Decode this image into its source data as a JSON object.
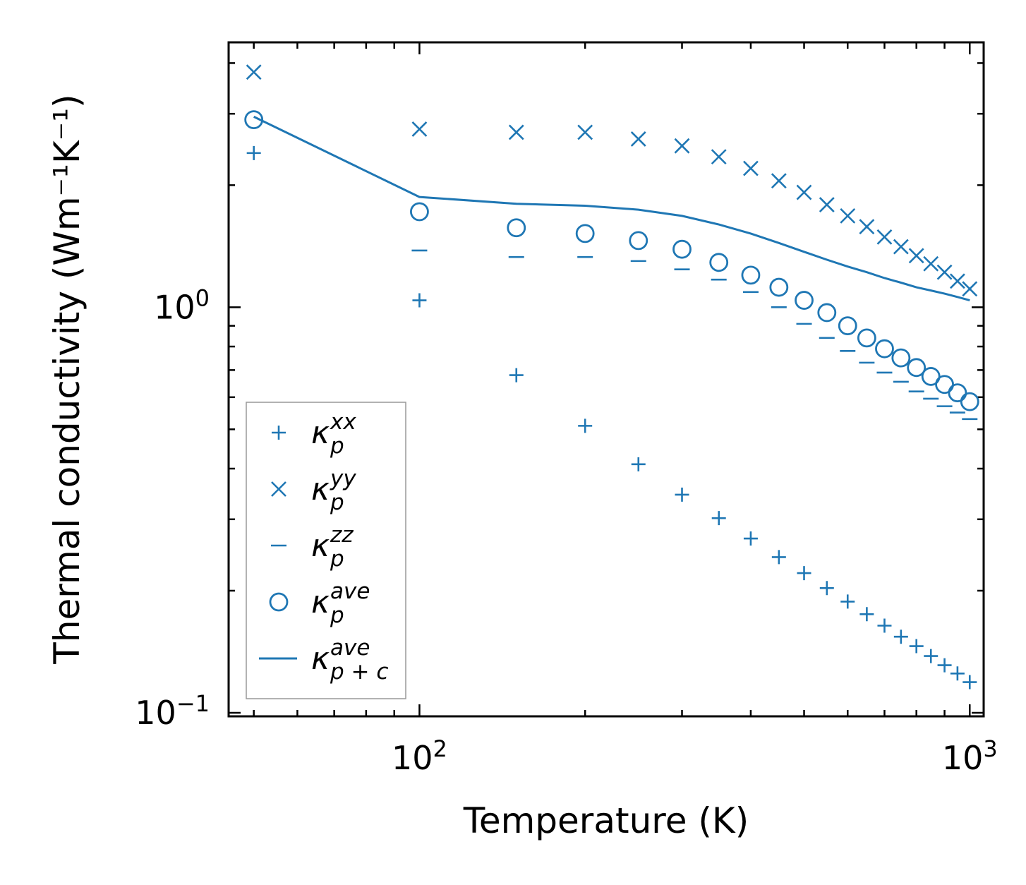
{
  "chart_data": {
    "type": "scatter",
    "xscale": "log",
    "yscale": "log",
    "xlabel": "Temperature (K)",
    "ylabel": "Thermal conductivity (Wm⁻¹K⁻¹)",
    "xlim": [
      45,
      1060
    ],
    "ylim": [
      0.098,
      4.5
    ],
    "xticks": [
      {
        "value": 100,
        "base": "10",
        "exp": "2"
      },
      {
        "value": 1000,
        "base": "10",
        "exp": "3"
      }
    ],
    "yticks": [
      {
        "value": 0.1,
        "base": "10",
        "exp": "−1"
      },
      {
        "value": 1,
        "base": "10",
        "exp": "0"
      }
    ],
    "color": "#1f77b4",
    "legend_position": "lower-left",
    "series": [
      {
        "name": "kappa_p_xx",
        "legend": {
          "main": "κ",
          "sub": "p",
          "sup": "xx"
        },
        "marker": "plus",
        "x": [
          50,
          100,
          150,
          200,
          250,
          300,
          350,
          400,
          450,
          500,
          550,
          600,
          650,
          700,
          750,
          800,
          850,
          900,
          950,
          1000
        ],
        "y": [
          2.4,
          1.04,
          0.68,
          0.51,
          0.41,
          0.345,
          0.302,
          0.269,
          0.242,
          0.221,
          0.203,
          0.188,
          0.175,
          0.164,
          0.154,
          0.146,
          0.138,
          0.131,
          0.125,
          0.119
        ]
      },
      {
        "name": "kappa_p_yy",
        "legend": {
          "main": "κ",
          "sub": "p",
          "sup": "yy"
        },
        "marker": "x",
        "x": [
          50,
          100,
          150,
          200,
          250,
          300,
          350,
          400,
          450,
          500,
          550,
          600,
          650,
          700,
          750,
          800,
          850,
          900,
          950,
          1000
        ],
        "y": [
          3.8,
          2.75,
          2.7,
          2.7,
          2.6,
          2.5,
          2.35,
          2.2,
          2.05,
          1.92,
          1.79,
          1.68,
          1.58,
          1.49,
          1.41,
          1.34,
          1.28,
          1.22,
          1.16,
          1.11
        ]
      },
      {
        "name": "kappa_p_zz",
        "legend": {
          "main": "κ",
          "sub": "p",
          "sup": "zz"
        },
        "marker": "hline",
        "x": [
          100,
          150,
          200,
          250,
          300,
          350,
          400,
          450,
          500,
          550,
          600,
          650,
          700,
          750,
          800,
          850,
          900,
          950,
          1000
        ],
        "y": [
          1.38,
          1.33,
          1.33,
          1.3,
          1.24,
          1.17,
          1.09,
          1.0,
          0.91,
          0.84,
          0.78,
          0.73,
          0.69,
          0.655,
          0.62,
          0.595,
          0.57,
          0.55,
          0.53
        ]
      },
      {
        "name": "kappa_p_ave",
        "legend": {
          "main": "κ",
          "sub": "p",
          "sup": "ave"
        },
        "marker": "circle",
        "x": [
          50,
          100,
          150,
          200,
          250,
          300,
          350,
          400,
          450,
          500,
          550,
          600,
          650,
          700,
          750,
          800,
          850,
          900,
          950,
          1000
        ],
        "y": [
          2.9,
          1.72,
          1.57,
          1.52,
          1.46,
          1.39,
          1.29,
          1.2,
          1.12,
          1.04,
          0.97,
          0.9,
          0.84,
          0.79,
          0.75,
          0.71,
          0.675,
          0.645,
          0.615,
          0.585
        ]
      },
      {
        "name": "kappa_pc_ave",
        "legend": {
          "main": "κ",
          "sub": "p + c",
          "sup": "ave"
        },
        "marker": "line",
        "x": [
          50,
          100,
          150,
          200,
          250,
          300,
          350,
          400,
          450,
          500,
          550,
          600,
          650,
          700,
          750,
          800,
          850,
          900,
          950,
          1000
        ],
        "y": [
          2.95,
          1.87,
          1.8,
          1.78,
          1.74,
          1.68,
          1.6,
          1.52,
          1.44,
          1.37,
          1.31,
          1.26,
          1.22,
          1.18,
          1.15,
          1.12,
          1.1,
          1.08,
          1.06,
          1.04
        ]
      }
    ]
  }
}
